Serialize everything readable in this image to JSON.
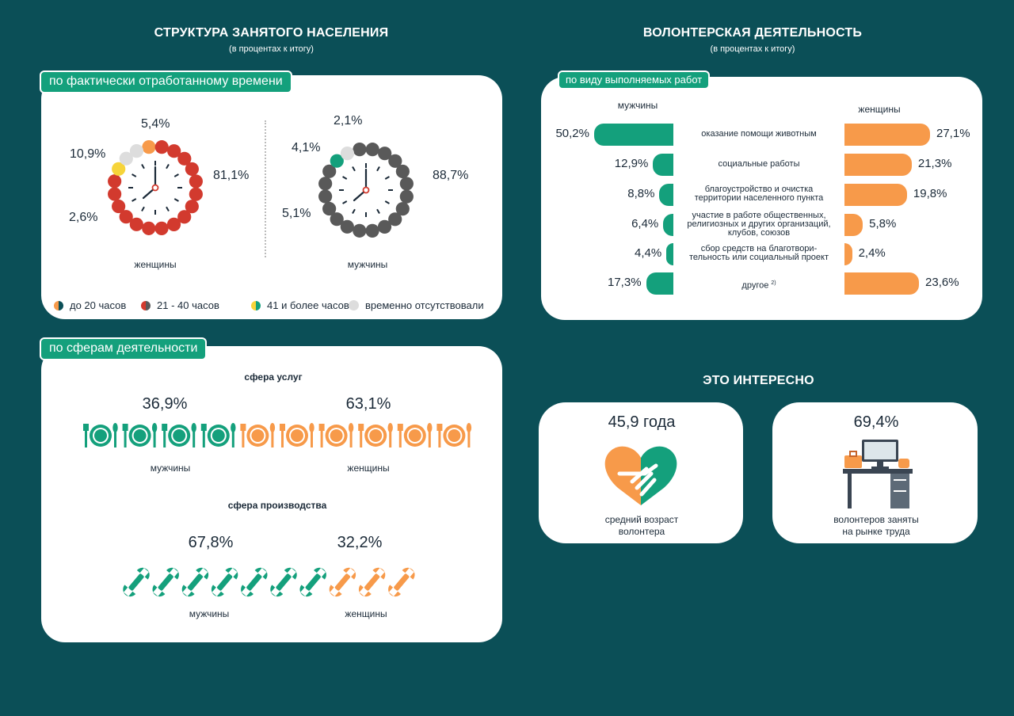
{
  "left_header": {
    "title": "СТРУКТУРА ЗАНЯТОГО НАСЕЛЕНИЯ",
    "subtitle": "(в процентах к итогу)"
  },
  "right_header": {
    "title": "ВОЛОНТЕРСКАЯ ДЕЯТЕЛЬНОСТЬ",
    "subtitle": "(в процентах к итогу)"
  },
  "time_panel": {
    "tab": "по фактически отработанному времени",
    "legend": [
      {
        "label": "до 20 часов",
        "color": "#f79a4a"
      },
      {
        "label": "21 - 40 часов",
        "color": "#d23a2e"
      },
      {
        "label": "41 и более часов",
        "color": "#f6d43a"
      },
      {
        "label": "временно отсутствовали",
        "color": "#dddddd"
      }
    ]
  },
  "sphere_panel": {
    "tab": "по сферам деятельности",
    "services": {
      "title": "сфера услуг",
      "men_pct": "36,9%",
      "women_pct": "63,1%",
      "men_label": "мужчины",
      "women_label": "женщины"
    },
    "production": {
      "title": "сфера производства",
      "men_pct": "67,8%",
      "women_pct": "32,2%",
      "men_label": "мужчины",
      "women_label": "женщины"
    }
  },
  "volunteer_panel": {
    "tab": "по виду выполняемых работ",
    "men_label": "мужчины",
    "women_label": "женщины",
    "footnote": "2)"
  },
  "interesting": {
    "title": "ЭТО ИНТЕРЕСНО",
    "card1": {
      "value": "45,9 года",
      "caption1": "средний возраст",
      "caption2": "волонтера"
    },
    "card2": {
      "value": "69,4%",
      "caption1": "волонтеров заняты",
      "caption2": "на рынке труда"
    }
  },
  "chart_data": [
    {
      "type": "pie",
      "title": "женщины",
      "categories": [
        "до 20 часов",
        "21 - 40 часов",
        "41 и более часов",
        "временно отсутствовали"
      ],
      "values": [
        5.4,
        81.1,
        2.6,
        10.9
      ],
      "labels": [
        "5,4%",
        "81,1%",
        "2,6%",
        "10,9%"
      ],
      "colors": [
        "#f79a4a",
        "#d23a2e",
        "#f6d43a",
        "#dddddd"
      ]
    },
    {
      "type": "pie",
      "title": "мужчины",
      "categories": [
        "до 20 часов",
        "21 - 40 часов",
        "41 и более часов",
        "временно отсутствовали"
      ],
      "values": [
        2.1,
        88.7,
        5.1,
        4.1
      ],
      "labels": [
        "2,1%",
        "88,7%",
        "5,1%",
        "4,1%"
      ],
      "colors": [
        "#0b4f57",
        "#595959",
        "#14a07c",
        "#dddddd"
      ]
    },
    {
      "type": "bar",
      "title": "сфера услуг",
      "categories": [
        "мужчины",
        "женщины"
      ],
      "values": [
        36.9,
        63.1
      ],
      "labels": [
        "36,9%",
        "63,1%"
      ]
    },
    {
      "type": "bar",
      "title": "сфера производства",
      "categories": [
        "мужчины",
        "женщины"
      ],
      "values": [
        67.8,
        32.2
      ],
      "labels": [
        "67,8%",
        "32,2%"
      ]
    },
    {
      "type": "bar",
      "title": "по виду выполняемых работ",
      "categories": [
        "оказание помощи животным",
        "социальные работы",
        "благоустройство и очистка территории населенного пункта",
        "участие в работе общественных, религиозных и других организаций, клубов, союзов",
        "сбор средств на благотвори- тельность или социальный проект",
        "другое"
      ],
      "category_lines": [
        [
          "оказание помощи животным"
        ],
        [
          "социальные работы"
        ],
        [
          "благоустройство и очистка",
          "территории населенного пункта"
        ],
        [
          "участие в работе общественных,",
          "религиозных и других организаций,",
          "клубов, союзов"
        ],
        [
          "сбор средств на благотвори-",
          "тельность или социальный проект"
        ],
        [
          "другое"
        ]
      ],
      "series": [
        {
          "name": "мужчины",
          "values": [
            50.2,
            12.9,
            8.8,
            6.4,
            4.4,
            17.3
          ],
          "labels": [
            "50,2%",
            "12,9%",
            "8,8%",
            "6,4%",
            "4,4%",
            "17,3%"
          ],
          "color": "#14a07c"
        },
        {
          "name": "женщины",
          "values": [
            27.1,
            21.3,
            19.8,
            5.8,
            2.4,
            23.6
          ],
          "labels": [
            "27,1%",
            "21,3%",
            "19,8%",
            "5,8%",
            "2,4%",
            "23,6%"
          ],
          "color": "#f79a4a"
        }
      ]
    }
  ]
}
